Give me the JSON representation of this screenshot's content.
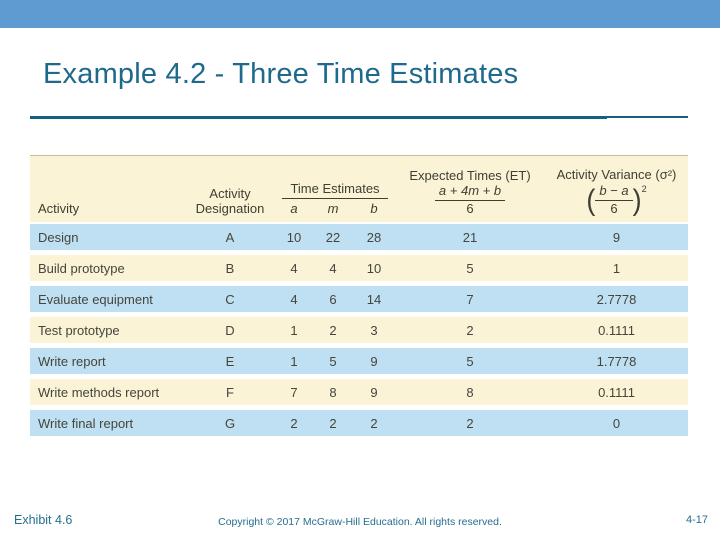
{
  "slide": {
    "title": "Example 4.2 - Three Time Estimates",
    "footer": {
      "exhibit": "Exhibit 4.6",
      "copyright": "Copyright © 2017 McGraw-Hill Education. All rights reserved.",
      "page": "4-17"
    }
  },
  "colors": {
    "top_bar": "#5F9AD0",
    "title_text": "#1E698C",
    "rule": "#16607F",
    "row_blue": "#BEE0F2",
    "row_cream": "#FAF3D6",
    "table_text": "#45453C",
    "footer_text": "#256F8E"
  },
  "table": {
    "headers": {
      "activity": "Activity",
      "designation_line1": "Activity",
      "designation_line2": "Designation",
      "time_estimates": "Time Estimates",
      "a": "a",
      "m": "m",
      "b": "b",
      "expected_times": "Expected Times (ET)",
      "et_formula_numerator": "a + 4m + b",
      "et_formula_denominator": "6",
      "variance": "Activity Variance (σ²)",
      "variance_formula_numerator": "b − a",
      "variance_formula_denominator": "6",
      "variance_exponent": "2"
    },
    "rows": [
      {
        "activity": "Design",
        "designation": "A",
        "a": "10",
        "m": "22",
        "b": "28",
        "et": "21",
        "variance": "9"
      },
      {
        "activity": "Build prototype",
        "designation": "B",
        "a": "4",
        "m": "4",
        "b": "10",
        "et": "5",
        "variance": "1"
      },
      {
        "activity": "Evaluate equipment",
        "designation": "C",
        "a": "4",
        "m": "6",
        "b": "14",
        "et": "7",
        "variance": "2.7778"
      },
      {
        "activity": "Test prototype",
        "designation": "D",
        "a": "1",
        "m": "2",
        "b": "3",
        "et": "2",
        "variance": "0.1111"
      },
      {
        "activity": "Write report",
        "designation": "E",
        "a": "1",
        "m": "5",
        "b": "9",
        "et": "5",
        "variance": "1.7778"
      },
      {
        "activity": "Write methods report",
        "designation": "F",
        "a": "7",
        "m": "8",
        "b": "9",
        "et": "8",
        "variance": "0.1111"
      },
      {
        "activity": "Write final report",
        "designation": "G",
        "a": "2",
        "m": "2",
        "b": "2",
        "et": "2",
        "variance": "0"
      }
    ]
  }
}
